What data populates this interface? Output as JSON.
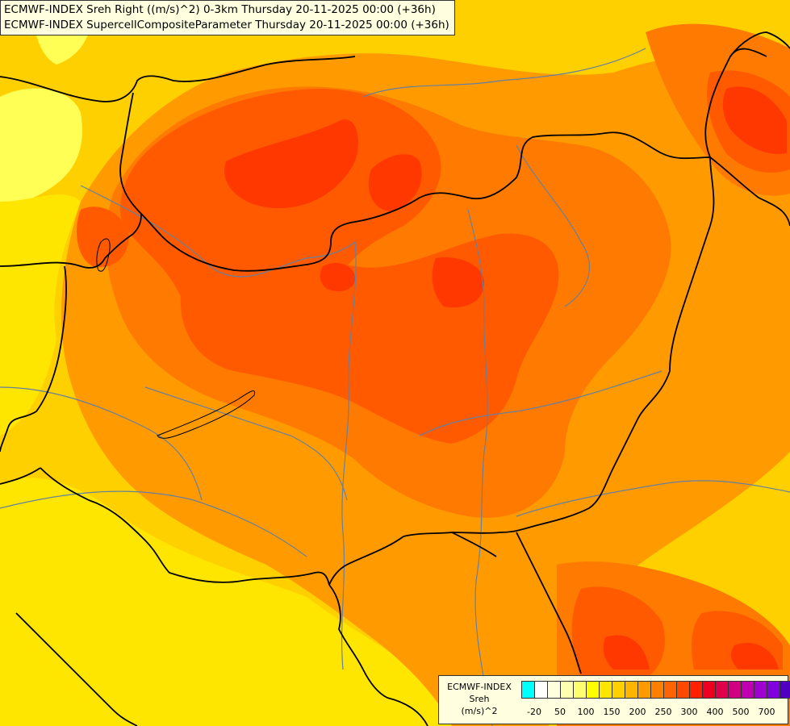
{
  "title": {
    "line1": "ECMWF-INDEX Sreh Right ((m/s)^2) 0-3km Thursday 20-11-2025 00:00 (+36h)",
    "line2": "ECMWF-INDEX SupercellCompositeParameter Thursday 20-11-2025 00:00 (+36h)"
  },
  "legend": {
    "line1": "ECMWF-INDEX",
    "line2": "Sreh",
    "line3": "(m/s)^2",
    "colors": [
      "#00ffff",
      "#ffffff",
      "#ffffe0",
      "#ffffb0",
      "#ffff70",
      "#ffff00",
      "#ffe600",
      "#ffd000",
      "#ffb400",
      "#ff9a00",
      "#ff8000",
      "#ff6400",
      "#ff4800",
      "#ff2000",
      "#f00020",
      "#e0004a",
      "#d00080",
      "#c000b0",
      "#a000d0",
      "#8000e0",
      "#5000c0",
      "#30009a",
      "#100070"
    ],
    "tick_labels": [
      "-20",
      "50",
      "100",
      "150",
      "200",
      "250",
      "300",
      "400",
      "500",
      "700"
    ]
  },
  "map": {
    "field_colors": {
      "pale_yellow": "#ffff55",
      "yellow": "#ffe600",
      "light_orange": "#ffc400",
      "orange": "#ff9a00",
      "dark_orange": "#ff7a00",
      "red_orange": "#ff5a00",
      "red": "#ff3800"
    },
    "border_color": "#000000",
    "river_color": "#6680a0"
  }
}
